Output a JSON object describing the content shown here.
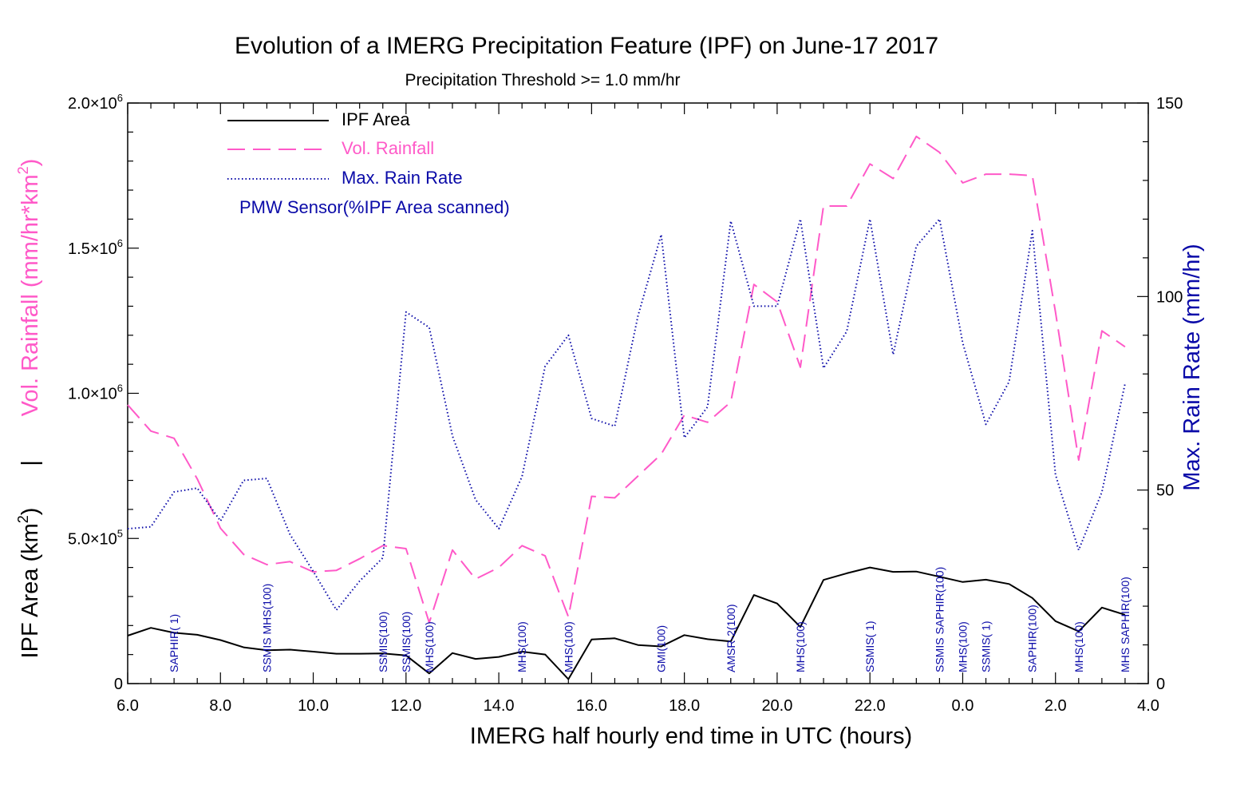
{
  "chart_data": {
    "type": "line",
    "title": "Evolution of a IMERG Precipitation Feature (IPF) on June-17 2017",
    "subtitle": "Precipitation Threshold >= 1.0 mm/hr",
    "xlabel": "IMERG half hourly end time in UTC (hours)",
    "ylabel_left_top": "Vol. Rainfall (mm/hr*km",
    "ylabel_left_top_sup": "2",
    "ylabel_left_top_end": ")",
    "ylabel_left_bottom": "IPF Area (km",
    "ylabel_left_bottom_sup": "2",
    "ylabel_left_bottom_end": ")",
    "ylabel_left_separator": "|",
    "ylabel_right": "Max. Rain Rate (mm/hr)",
    "xlim": [
      6.0,
      28.0
    ],
    "ylim_left": [
      0,
      2000000
    ],
    "ylim_right": [
      0,
      150
    ],
    "x_tick_labels": [
      "6.0",
      "8.0",
      "10.0",
      "12.0",
      "14.0",
      "16.0",
      "18.0",
      "20.0",
      "22.0",
      "0.0",
      "2.0",
      "4.0"
    ],
    "y_left_ticks": [
      {
        "value": 0,
        "mant": "0",
        "exp": ""
      },
      {
        "value": 500000,
        "mant": "5.0×10",
        "exp": "5"
      },
      {
        "value": 1000000,
        "mant": "1.0×10",
        "exp": "6"
      },
      {
        "value": 1500000,
        "mant": "1.5×10",
        "exp": "6"
      },
      {
        "value": 2000000,
        "mant": "2.0×10",
        "exp": "6"
      }
    ],
    "y_right_ticks": [
      "0",
      "50",
      "100",
      "150"
    ],
    "x": [
      6.0,
      6.5,
      7.0,
      7.5,
      8.0,
      8.5,
      9.0,
      9.5,
      10.0,
      10.5,
      11.0,
      11.5,
      12.0,
      12.5,
      13.0,
      13.5,
      14.0,
      14.5,
      15.0,
      15.5,
      16.0,
      16.5,
      17.0,
      17.5,
      18.0,
      18.5,
      19.0,
      19.5,
      20.0,
      20.5,
      21.0,
      21.5,
      22.0,
      22.5,
      23.0,
      23.5,
      24.0,
      24.5,
      25.0,
      25.5,
      26.0,
      26.5,
      27.0,
      27.5
    ],
    "series": [
      {
        "name": "IPF Area",
        "axis": "left",
        "style": "solid",
        "color": "#000000",
        "values": [
          165000,
          192000,
          175000,
          168000,
          150000,
          125000,
          115000,
          117000,
          110000,
          103000,
          103000,
          104000,
          97000,
          35000,
          105000,
          85000,
          92000,
          110000,
          100000,
          15000,
          152000,
          156000,
          133000,
          128000,
          167000,
          153000,
          145000,
          305000,
          276000,
          195000,
          357000,
          380000,
          400000,
          385000,
          386000,
          368000,
          350000,
          358000,
          343000,
          295000,
          215000,
          180000,
          262000,
          237000
        ]
      },
      {
        "name": "Vol. Rainfall",
        "axis": "left",
        "style": "dashed",
        "color": "#ff59c8",
        "values": [
          960000,
          870000,
          845000,
          705000,
          535000,
          445000,
          410000,
          420000,
          385000,
          390000,
          430000,
          475000,
          465000,
          210000,
          460000,
          360000,
          400000,
          475000,
          440000,
          230000,
          645000,
          640000,
          715000,
          790000,
          925000,
          900000,
          970000,
          1375000,
          1315000,
          1090000,
          1645000,
          1645000,
          1790000,
          1740000,
          1885000,
          1830000,
          1725000,
          1755000,
          1755000,
          1750000,
          1280000,
          770000,
          1215000,
          1160000
        ]
      },
      {
        "name": "Max. Rain Rate",
        "axis": "right",
        "style": "dotted",
        "color": "#0a0aa8",
        "values": [
          40,
          40.5,
          49.5,
          50.5,
          42,
          52.5,
          53,
          38.5,
          29,
          19,
          26.5,
          32.5,
          96,
          92,
          64,
          47.5,
          40,
          53.5,
          82,
          90,
          68.5,
          66.5,
          95,
          116,
          63.5,
          71.5,
          119.5,
          97.5,
          97.5,
          120,
          81.5,
          91,
          120,
          85,
          113,
          120,
          88,
          67,
          78,
          117,
          54,
          34.5,
          49.5,
          77.5
        ]
      }
    ],
    "legend": {
      "placement": "top-left",
      "entries": [
        "IPF Area",
        "Vol. Rainfall",
        "Max. Rain Rate"
      ],
      "note": "PMW Sensor(%IPF Area scanned)"
    },
    "sensor_annotations": [
      {
        "x": 7.0,
        "label": "SAPHIR(  1)"
      },
      {
        "x": 9.0,
        "label": "SSMIS MHS(100)"
      },
      {
        "x": 11.5,
        "label": "SSMIS(100)"
      },
      {
        "x": 12.0,
        "label": "SSMIS(100)"
      },
      {
        "x": 12.5,
        "label": "MHS(100)"
      },
      {
        "x": 14.5,
        "label": "MHS(100)"
      },
      {
        "x": 15.5,
        "label": "MHS(100)"
      },
      {
        "x": 17.5,
        "label": "GMI(100)"
      },
      {
        "x": 19.0,
        "label": "AMSR-2(100)"
      },
      {
        "x": 20.5,
        "label": "MHS(100)"
      },
      {
        "x": 22.0,
        "label": "SSMIS(  1)"
      },
      {
        "x": 23.5,
        "label": "SSMIS SAPHIR(100)"
      },
      {
        "x": 24.0,
        "label": "MHS(100)"
      },
      {
        "x": 24.5,
        "label": "SSMIS(  1)"
      },
      {
        "x": 25.5,
        "label": "SAPHIR(100)"
      },
      {
        "x": 26.5,
        "label": "MHS(100)"
      },
      {
        "x": 27.5,
        "label": "MHS SAPHIR(100)"
      }
    ]
  }
}
